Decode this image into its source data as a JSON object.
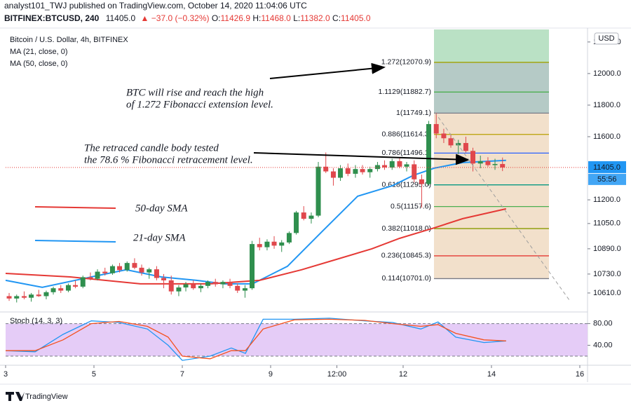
{
  "header": {
    "published": "analyst101_TWJ published on TradingView.com, October 14, 2020 11:04:06 UTC",
    "symbol": "BITFINEX:BTCUSD, 240",
    "last": "11405.0",
    "change": "▲ −37.0 (−0.32%)",
    "o_label": "O:",
    "o": "11426.9",
    "h_label": "H:",
    "h": "11468.0",
    "l_label": "L:",
    "l": "11382.0",
    "c_label": "C:",
    "c": "11405.0"
  },
  "chart_data": [
    {
      "type": "candlestick",
      "title": "Bitcoin / U.S. Dollar, 4h, BITFINEX",
      "currency": "USD",
      "up_color": "#2f8f4e",
      "down_color": "#e0474c",
      "xlim": [
        3,
        16.175
      ],
      "xticks": [
        3,
        5,
        7,
        9,
        {
          "value": 10.5,
          "label": "12:00"
        },
        12,
        14,
        16
      ],
      "ylim": [
        10512,
        12266
      ],
      "yticks": [
        {
          "value": 12200,
          "label": "12200.0"
        },
        {
          "value": 12000,
          "label": "12000.0"
        },
        {
          "value": 11800,
          "label": "11800.0"
        },
        {
          "value": 11600,
          "label": "11600.0"
        },
        {
          "value": 11200,
          "label": "11200.0"
        },
        {
          "value": 11050,
          "label": "11050.0"
        },
        {
          "value": 10890,
          "label": "10890.0"
        },
        {
          "value": 10730,
          "label": "10730.0"
        },
        {
          "value": 10610,
          "label": "10610.0"
        }
      ],
      "grid": false,
      "last_price": 11405,
      "last_price_label": "11405.0",
      "countdown": "55:56",
      "x": [
        3.08,
        3.25,
        3.42,
        3.58,
        3.75,
        3.92,
        4.08,
        4.25,
        4.42,
        4.58,
        4.75,
        4.92,
        5.08,
        5.25,
        5.42,
        5.58,
        5.75,
        5.92,
        6.08,
        6.25,
        6.42,
        6.58,
        6.75,
        6.92,
        7.08,
        7.25,
        7.42,
        7.58,
        7.75,
        7.92,
        8.08,
        8.25,
        8.42,
        8.58,
        8.75,
        8.92,
        9.08,
        9.25,
        9.42,
        9.58,
        9.75,
        9.92,
        10.08,
        10.25,
        10.42,
        10.58,
        10.75,
        10.92,
        11.08,
        11.25,
        11.42,
        11.58,
        11.75,
        11.92,
        12.08,
        12.25,
        12.42,
        12.58,
        12.75,
        12.92,
        13.08,
        13.25,
        13.42,
        13.58,
        13.75,
        13.92,
        14.08,
        14.25
      ],
      "open": [
        10590,
        10575,
        10590,
        10580,
        10600,
        10590,
        10615,
        10640,
        10625,
        10660,
        10650,
        10710,
        10700,
        10745,
        10735,
        10780,
        10755,
        10800,
        10770,
        10740,
        10760,
        10705,
        10690,
        10620,
        10645,
        10665,
        10640,
        10655,
        10680,
        10665,
        10680,
        10655,
        10625,
        10640,
        10920,
        10900,
        10935,
        10910,
        10930,
        10990,
        11120,
        11080,
        11100,
        11410,
        11380,
        11340,
        11400,
        11365,
        11395,
        11375,
        11395,
        11420,
        11405,
        11445,
        11410,
        11425,
        11330,
        11300,
        11680,
        11620,
        11590,
        11545,
        11560,
        11510,
        11430,
        11445,
        11420,
        11426.9
      ],
      "high": [
        10610,
        10600,
        10620,
        10610,
        10630,
        10625,
        10650,
        10660,
        10670,
        10690,
        10720,
        10740,
        10760,
        10770,
        10790,
        10800,
        10810,
        10830,
        10790,
        10770,
        10780,
        10730,
        10720,
        10660,
        10680,
        10690,
        10670,
        10690,
        10700,
        10690,
        10700,
        10670,
        10660,
        10940,
        10960,
        10950,
        10970,
        10945,
        11000,
        11130,
        11160,
        11120,
        11440,
        11500,
        11400,
        11420,
        11430,
        11420,
        11420,
        11410,
        11440,
        11450,
        11460,
        11470,
        11440,
        11450,
        11360,
        11700,
        11750,
        11650,
        11610,
        11580,
        11600,
        11530,
        11480,
        11470,
        11460,
        11468
      ],
      "low": [
        10560,
        10550,
        10570,
        10555,
        10585,
        10570,
        10600,
        10610,
        10615,
        10640,
        10640,
        10690,
        10690,
        10720,
        10725,
        10740,
        10745,
        10760,
        10720,
        10700,
        10690,
        10640,
        10600,
        10590,
        10620,
        10630,
        10615,
        10640,
        10650,
        10640,
        10640,
        10610,
        10580,
        10630,
        10880,
        10880,
        10890,
        10870,
        10920,
        10980,
        11070,
        11050,
        11090,
        11370,
        11290,
        11320,
        11350,
        11340,
        11360,
        11340,
        11380,
        11390,
        11390,
        11400,
        11380,
        11310,
        11150,
        11290,
        11590,
        11560,
        11530,
        11490,
        11500,
        11380,
        11400,
        11410,
        11390,
        11382
      ],
      "close": [
        10575,
        10590,
        10580,
        10600,
        10590,
        10615,
        10640,
        10625,
        10660,
        10650,
        10710,
        10700,
        10745,
        10735,
        10780,
        10755,
        10800,
        10770,
        10740,
        10760,
        10705,
        10690,
        10620,
        10645,
        10665,
        10640,
        10655,
        10680,
        10665,
        10680,
        10655,
        10625,
        10640,
        10920,
        10900,
        10935,
        10910,
        10930,
        10990,
        11120,
        11080,
        11100,
        11410,
        11380,
        11340,
        11400,
        11365,
        11395,
        11375,
        11395,
        11420,
        11405,
        11445,
        11410,
        11425,
        11330,
        11300,
        11680,
        11620,
        11590,
        11545,
        11560,
        11510,
        11430,
        11445,
        11420,
        11426.9,
        11405
      ],
      "lines": [
        {
          "name": "MA (21, close, 0)",
          "color": "#2196f3",
          "x": [
            3,
            3.83,
            4.94,
            5.73,
            6.52,
            7.32,
            7.95,
            8.59,
            9.38,
            10.17,
            10.97,
            11.76,
            12.24,
            12.71,
            13.35,
            14.33
          ],
          "values": [
            10690,
            10646,
            10712,
            10757,
            10712,
            10690,
            10668,
            10668,
            10779,
            11001,
            11223,
            11290,
            11356,
            11401,
            11436,
            11450
          ]
        },
        {
          "name": "MA (50, close, 0)",
          "color": "#e53935",
          "x": [
            3,
            4.46,
            6.05,
            7.63,
            8.75,
            9.7,
            10.49,
            11.29,
            11.92,
            12.71,
            13.35,
            14.33
          ],
          "values": [
            10734,
            10712,
            10668,
            10668,
            10690,
            10757,
            10823,
            10890,
            10956,
            11023,
            11081,
            11143
          ]
        }
      ],
      "fib_levels": [
        {
          "label": "1.272(12070.9)",
          "value": 12070.9,
          "color": "#a0a000"
        },
        {
          "label": "1.1129(11882.7)",
          "value": 11882.7,
          "color": "#4caf50"
        },
        {
          "label": "1(11749.1)",
          "value": 11749.1,
          "color": "#787b86"
        },
        {
          "label": "0.886(11614.3)",
          "value": 11614.3,
          "color": "#b8a000"
        },
        {
          "label": "0.786(11496.1)",
          "value": 11496.1,
          "color": "#2962ff"
        },
        {
          "label": "0.618(11295.0)",
          "value": 11295,
          "color": "#089981"
        },
        {
          "label": "0.5(11157.6)",
          "value": 11157.6,
          "color": "#4caf50"
        },
        {
          "label": "0.382(11018.0)",
          "value": 11018,
          "color": "#8a9a00"
        },
        {
          "label": "0.236(10845.3)",
          "value": 10845.3,
          "color": "#e53935"
        },
        {
          "label": "0.114(10701.0)",
          "value": 10701,
          "color": "#787b86"
        }
      ],
      "annotations": [
        {
          "text": "BTC  will rise and reach the high",
          "color": "#131722"
        },
        {
          "text": "of 1.272 Fibonacci extension level.",
          "color": "#131722"
        },
        {
          "text": "The retraced candle body tested",
          "color": "#131722"
        },
        {
          "text": "the 78.6 % Fibonacci retracement level.",
          "color": "#131722"
        },
        {
          "text": "50-day SMA",
          "color": "#e53935"
        },
        {
          "text": "21-day SMA",
          "color": "#2196f3"
        }
      ]
    },
    {
      "type": "line",
      "title": "Stoch (14, 3, 3)",
      "xlim": [
        3,
        16.175
      ],
      "ylim": [
        7,
        95
      ],
      "yticks": [
        {
          "value": 80,
          "label": "80.00"
        },
        {
          "value": 40,
          "label": "40.00"
        }
      ],
      "band": [
        20,
        80
      ],
      "band_color": "#e5ccf7",
      "series": [
        {
          "name": "%K",
          "color": "#2196f3",
          "x": [
            3,
            3.67,
            4.3,
            4.94,
            5.57,
            6.21,
            6.68,
            7,
            7.63,
            8.11,
            8.43,
            8.83,
            9.54,
            10.33,
            11.13,
            11.76,
            12.4,
            12.79,
            13.19,
            13.83,
            14.33
          ],
          "values": [
            30,
            28,
            60,
            85,
            82,
            70,
            40,
            12,
            20,
            35,
            25,
            88,
            88,
            90,
            85,
            82,
            70,
            83,
            55,
            45,
            48
          ]
        },
        {
          "name": "%D",
          "color": "#f4511e",
          "x": [
            3,
            3.67,
            4.3,
            4.94,
            5.57,
            6.21,
            6.68,
            7,
            7.63,
            8.11,
            8.43,
            8.83,
            9.54,
            10.33,
            11.13,
            11.76,
            12.4,
            12.79,
            13.19,
            13.83,
            14.33
          ],
          "values": [
            30,
            30,
            50,
            80,
            84,
            75,
            55,
            20,
            15,
            30,
            30,
            70,
            87,
            88,
            86,
            80,
            75,
            78,
            62,
            50,
            48
          ]
        }
      ]
    }
  ],
  "footer": {
    "brand": "TradingView"
  }
}
